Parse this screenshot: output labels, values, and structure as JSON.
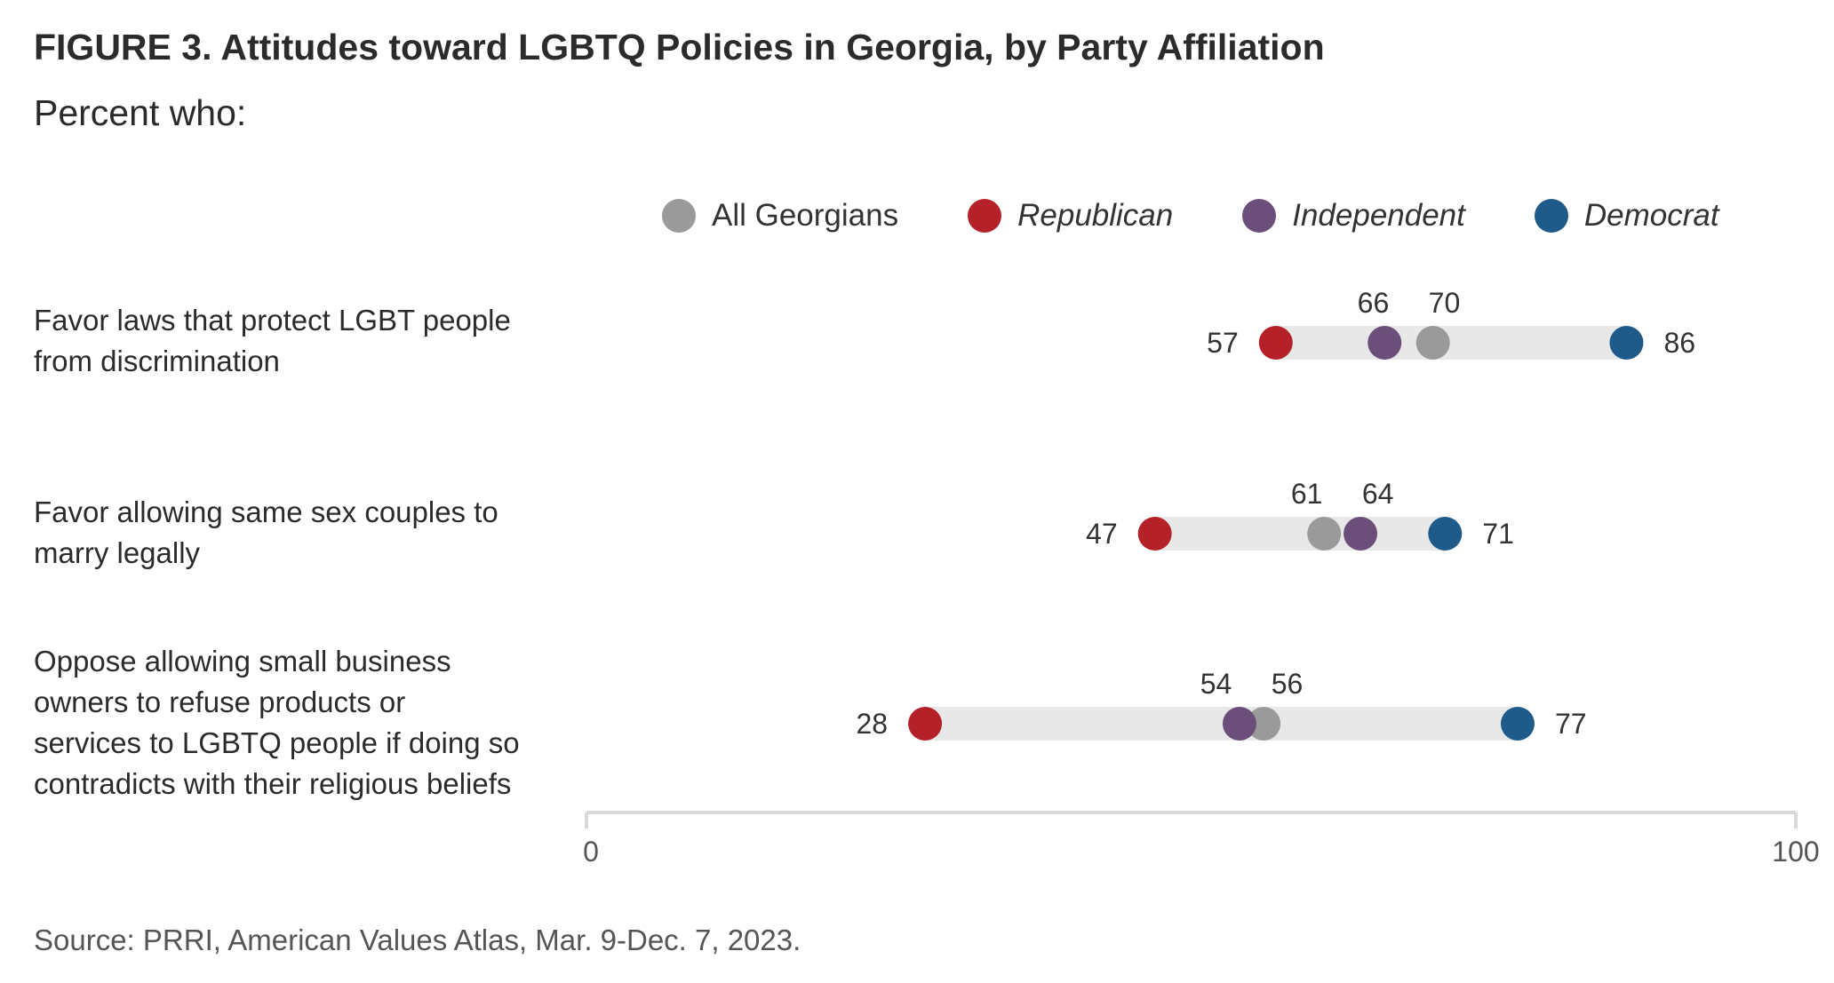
{
  "title": "FIGURE 3. Attitudes toward LGBTQ Policies in Georgia, by Party Affiliation",
  "subtitle": "Percent who:",
  "source": "Source: PRRI, American Values Atlas, Mar. 9-Dec. 7, 2023.",
  "legend": [
    {
      "label": "All Georgians",
      "color": "#9a9a9a",
      "italic": false
    },
    {
      "label": "Republican",
      "color": "#b52128",
      "italic": true
    },
    {
      "label": "Independent",
      "color": "#6b4f7a",
      "italic": true
    },
    {
      "label": "Democrat",
      "color": "#1e5a8a",
      "italic": true
    }
  ],
  "row_labels": [
    [
      "Favor laws that protect LGBT people",
      "from discrimination"
    ],
    [
      "Favor allowing same sex couples to",
      "marry legally"
    ],
    [
      "Oppose allowing small business",
      "owners to refuse products or",
      "services to LGBTQ people if doing so",
      "contradicts with their religious beliefs"
    ]
  ],
  "chart_data": {
    "type": "scatter",
    "subtype": "dot-range",
    "title": "FIGURE 3. Attitudes toward LGBTQ Policies in Georgia, by Party Affiliation",
    "subtitle": "Percent who:",
    "categories": [
      "Favor laws that protect LGBT people from discrimination",
      "Favor allowing same sex couples to marry legally",
      "Oppose allowing small business owners to refuse products or services to LGBTQ people if doing so contradicts with their religious beliefs"
    ],
    "series": [
      {
        "name": "All Georgians",
        "color": "#9a9a9a",
        "values": [
          70,
          61,
          56
        ]
      },
      {
        "name": "Republican",
        "color": "#b52128",
        "values": [
          57,
          47,
          28
        ]
      },
      {
        "name": "Independent",
        "color": "#6b4f7a",
        "values": [
          66,
          64,
          54
        ]
      },
      {
        "name": "Democrat",
        "color": "#1e5a8a",
        "values": [
          86,
          71,
          77
        ]
      }
    ],
    "xlim": [
      0,
      100
    ],
    "xticks": [
      "0",
      "100"
    ],
    "range_bar_color": "#e8e8e8",
    "axis_color": "#d9d9d9",
    "legend_position": "top",
    "grid": false
  }
}
